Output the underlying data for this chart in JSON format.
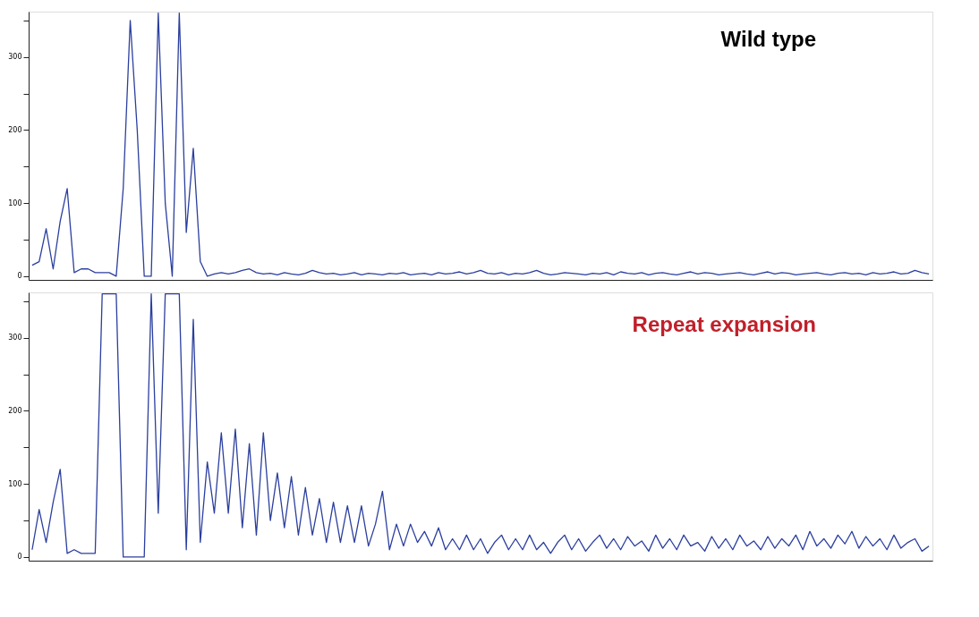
{
  "chart_data": [
    {
      "type": "line",
      "title": "Wild type",
      "tick_labels": "y",
      "grid": false,
      "ylim": [
        -5,
        362
      ],
      "yticks": [
        0,
        {
          "value": 50,
          "label": null
        },
        100,
        {
          "value": 150,
          "label": null
        },
        200,
        {
          "value": 250,
          "label": null
        },
        300,
        {
          "value": 350,
          "label": null
        }
      ],
      "categories": [
        null,
        null,
        null,
        null,
        null,
        null,
        null,
        null,
        null,
        null,
        null,
        null,
        null,
        null,
        null,
        null,
        null,
        null,
        null,
        null,
        null,
        null,
        null,
        null,
        null,
        null,
        null,
        null,
        null,
        null,
        null,
        null,
        null,
        null,
        null,
        null,
        null,
        null,
        null,
        null,
        null,
        null,
        null,
        null,
        null,
        null,
        null,
        null,
        null,
        null,
        null,
        null,
        null,
        null,
        null,
        null,
        null,
        null,
        null,
        null,
        null,
        null,
        null,
        null,
        null,
        null,
        null,
        null,
        null,
        null,
        null,
        null,
        null,
        null,
        null,
        null,
        null,
        null,
        null,
        null,
        null,
        null,
        null,
        null,
        null,
        null,
        null,
        null,
        null,
        null,
        null,
        null,
        null,
        null,
        null,
        null,
        null,
        null,
        null,
        null,
        null,
        null,
        null,
        null,
        null,
        null,
        null,
        null,
        null,
        null,
        null,
        null,
        null,
        null,
        null,
        null,
        null,
        null,
        null,
        null,
        null,
        null,
        null,
        null,
        null,
        null,
        null,
        null,
        null
      ],
      "series": [
        {
          "color": "#2b3f9e",
          "values": [
            15,
            20,
            65,
            10,
            75,
            120,
            5,
            10,
            10,
            5,
            5,
            5,
            0,
            120,
            350,
            200,
            0,
            0,
            360,
            100,
            0,
            360,
            60,
            175,
            20,
            0,
            3,
            5,
            3,
            5,
            8,
            10,
            5,
            3,
            4,
            2,
            5,
            3,
            2,
            4,
            8,
            5,
            3,
            4,
            2,
            3,
            5,
            2,
            4,
            3,
            2,
            4,
            3,
            5,
            2,
            3,
            4,
            2,
            5,
            3,
            4,
            6,
            3,
            5,
            8,
            4,
            3,
            5,
            2,
            4,
            3,
            5,
            8,
            4,
            2,
            3,
            5,
            4,
            3,
            2,
            4,
            3,
            5,
            2,
            6,
            4,
            3,
            5,
            2,
            4,
            5,
            3,
            2,
            4,
            6,
            3,
            5,
            4,
            2,
            3,
            4,
            5,
            3,
            2,
            4,
            6,
            3,
            5,
            4,
            2,
            3,
            4,
            5,
            3,
            2,
            4,
            5,
            3,
            4,
            2,
            5,
            3,
            4,
            6,
            3,
            4,
            8,
            5,
            3
          ]
        }
      ]
    },
    {
      "type": "line",
      "title": "Repeat expansion",
      "tick_labels": "y",
      "grid": false,
      "ylim": [
        -5,
        362
      ],
      "yticks": [
        0,
        {
          "value": 50,
          "label": null
        },
        100,
        {
          "value": 150,
          "label": null
        },
        200,
        {
          "value": 250,
          "label": null
        },
        300,
        {
          "value": 350,
          "label": null
        }
      ],
      "categories": [
        null,
        null,
        null,
        null,
        null,
        null,
        null,
        null,
        null,
        null,
        null,
        null,
        null,
        null,
        null,
        null,
        null,
        null,
        null,
        null,
        null,
        null,
        null,
        null,
        null,
        null,
        null,
        null,
        null,
        null,
        null,
        null,
        null,
        null,
        null,
        null,
        null,
        null,
        null,
        null,
        null,
        null,
        null,
        null,
        null,
        null,
        null,
        null,
        null,
        null,
        null,
        null,
        null,
        null,
        null,
        null,
        null,
        null,
        null,
        null,
        null,
        null,
        null,
        null,
        null,
        null,
        null,
        null,
        null,
        null,
        null,
        null,
        null,
        null,
        null,
        null,
        null,
        null,
        null,
        null,
        null,
        null,
        null,
        null,
        null,
        null,
        null,
        null,
        null,
        null,
        null,
        null,
        null,
        null,
        null,
        null,
        null,
        null,
        null,
        null,
        null,
        null,
        null,
        null,
        null,
        null,
        null,
        null,
        null,
        null,
        null,
        null,
        null,
        null,
        null,
        null,
        null,
        null,
        null,
        null,
        null,
        null,
        null,
        null,
        null,
        null,
        null,
        null,
        null
      ],
      "series": [
        {
          "color": "#2b3f9e",
          "values": [
            10,
            65,
            20,
            75,
            120,
            5,
            10,
            5,
            5,
            5,
            360,
            360,
            360,
            0,
            0,
            0,
            0,
            360,
            60,
            360,
            360,
            360,
            10,
            325,
            20,
            130,
            60,
            170,
            60,
            175,
            40,
            155,
            30,
            170,
            50,
            115,
            40,
            110,
            30,
            95,
            30,
            80,
            20,
            75,
            20,
            70,
            20,
            70,
            15,
            45,
            90,
            10,
            45,
            15,
            45,
            20,
            35,
            15,
            40,
            10,
            25,
            10,
            30,
            10,
            25,
            5,
            20,
            30,
            10,
            25,
            10,
            30,
            10,
            20,
            5,
            20,
            30,
            10,
            25,
            8,
            20,
            30,
            12,
            25,
            10,
            28,
            15,
            22,
            8,
            30,
            12,
            25,
            10,
            30,
            15,
            20,
            8,
            28,
            12,
            25,
            10,
            30,
            15,
            22,
            10,
            28,
            12,
            25,
            15,
            30,
            10,
            35,
            15,
            25,
            12,
            30,
            18,
            35,
            12,
            28,
            15,
            25,
            10,
            30,
            12,
            20,
            25,
            8,
            15
          ]
        }
      ]
    }
  ]
}
